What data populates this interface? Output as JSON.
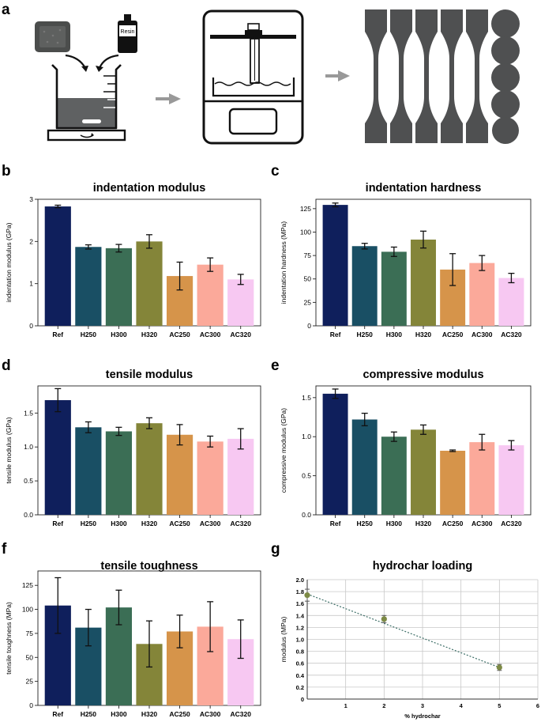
{
  "panel_letters": {
    "a": "a",
    "b": "b",
    "c": "c",
    "d": "d",
    "e": "e",
    "f": "f",
    "g": "g"
  },
  "schematic": {
    "bottle_label": "Resin"
  },
  "bar_colors": [
    "#0f1f5c",
    "#194f64",
    "#3b6e55",
    "#848539",
    "#d6944a",
    "#fba99a",
    "#f7c8f2"
  ],
  "chart_data": [
    {
      "id": "b",
      "type": "bar",
      "title": "indentation modulus",
      "xlabel": "",
      "ylabel": "indentation modulus (GPa)",
      "categories": [
        "Ref",
        "H250",
        "H300",
        "H320",
        "AC250",
        "AC300",
        "AC320"
      ],
      "values": [
        2.83,
        1.87,
        1.84,
        2.0,
        1.18,
        1.45,
        1.1
      ],
      "errors": [
        0.03,
        0.05,
        0.09,
        0.16,
        0.33,
        0.16,
        0.12
      ],
      "ylim": [
        0,
        3
      ],
      "yticks": [
        0,
        1,
        2,
        3
      ],
      "ytick_labels": [
        "0",
        "1",
        "2",
        "3"
      ]
    },
    {
      "id": "c",
      "type": "bar",
      "title": "indentation hardness",
      "xlabel": "",
      "ylabel": "indentation hardness (MPa)",
      "categories": [
        "Ref",
        "H250",
        "H300",
        "H320",
        "AC250",
        "AC300",
        "AC320"
      ],
      "values": [
        129,
        85,
        79,
        92,
        60,
        67,
        51
      ],
      "errors": [
        2,
        3,
        5,
        9,
        17,
        8,
        5
      ],
      "ylim": [
        0,
        135
      ],
      "yticks": [
        0,
        25,
        50,
        75,
        100,
        125
      ],
      "ytick_labels": [
        "0",
        "25",
        "50",
        "75",
        "100",
        "125"
      ]
    },
    {
      "id": "d",
      "type": "bar",
      "title": "tensile modulus",
      "xlabel": "",
      "ylabel": "tensile modulus (GPa)",
      "categories": [
        "Ref",
        "H250",
        "H300",
        "H320",
        "AC250",
        "AC300",
        "AC320"
      ],
      "values": [
        1.69,
        1.29,
        1.23,
        1.35,
        1.18,
        1.08,
        1.12
      ],
      "errors": [
        0.17,
        0.08,
        0.06,
        0.08,
        0.15,
        0.08,
        0.15
      ],
      "ylim": [
        0,
        1.9
      ],
      "yticks": [
        0,
        0.5,
        1.0,
        1.5
      ],
      "ytick_labels": [
        "0.0",
        "0.5",
        "1.0",
        "1.5"
      ]
    },
    {
      "id": "e",
      "type": "bar",
      "title": "compressive modulus",
      "xlabel": "",
      "ylabel": "compressive modulus (GPa)",
      "categories": [
        "Ref",
        "H250",
        "H300",
        "H320",
        "AC250",
        "AC300",
        "AC320"
      ],
      "values": [
        1.55,
        1.22,
        1.0,
        1.09,
        0.82,
        0.93,
        0.89
      ],
      "errors": [
        0.06,
        0.08,
        0.06,
        0.06,
        0.01,
        0.1,
        0.06
      ],
      "ylim": [
        0,
        1.65
      ],
      "yticks": [
        0,
        0.5,
        1.0,
        1.5
      ],
      "ytick_labels": [
        "0.0",
        "0.5",
        "1.0",
        "1.5"
      ]
    },
    {
      "id": "f",
      "type": "bar",
      "title": "tensile toughness",
      "xlabel": "",
      "ylabel": "tensile toughness (MPa)",
      "categories": [
        "Ref",
        "H250",
        "H300",
        "H320",
        "AC250",
        "AC300",
        "AC320"
      ],
      "values": [
        104,
        81,
        102,
        64,
        77,
        82,
        69
      ],
      "errors": [
        29,
        19,
        18,
        24,
        17,
        26,
        20
      ],
      "ylim": [
        0,
        140
      ],
      "yticks": [
        0,
        25,
        50,
        75,
        100,
        125
      ],
      "ytick_labels": [
        "0",
        "25",
        "50",
        "75",
        "100",
        "125"
      ]
    },
    {
      "id": "g",
      "type": "scatter",
      "title": "hydrochar loading",
      "xlabel": "% hydrochar",
      "ylabel": "modulus (MPa)",
      "x": [
        0,
        2,
        5
      ],
      "y": [
        1.74,
        1.34,
        0.53
      ],
      "errors": [
        0.1,
        0.06,
        0.05
      ],
      "trend_line": {
        "x": [
          0,
          5
        ],
        "y": [
          1.76,
          0.53
        ]
      },
      "xlim": [
        0,
        6
      ],
      "ylim": [
        0,
        2.0
      ],
      "xticks": [
        1,
        2,
        3,
        4,
        5,
        6
      ],
      "xtick_labels": [
        "1",
        "2",
        "3",
        "4",
        "5",
        "6"
      ],
      "yticks": [
        0,
        0.2,
        0.4,
        0.6,
        0.8,
        1.0,
        1.2,
        1.4,
        1.6,
        1.8,
        2.0
      ],
      "ytick_labels": [
        "0",
        "0.2",
        "0.4",
        "0.6",
        "0.8",
        "1.0",
        "1.2",
        "1.4",
        "1.6",
        "1.8",
        "2.0"
      ],
      "grid": true,
      "marker_color": "#7d8a45",
      "line_color": "#3e6f68"
    }
  ]
}
